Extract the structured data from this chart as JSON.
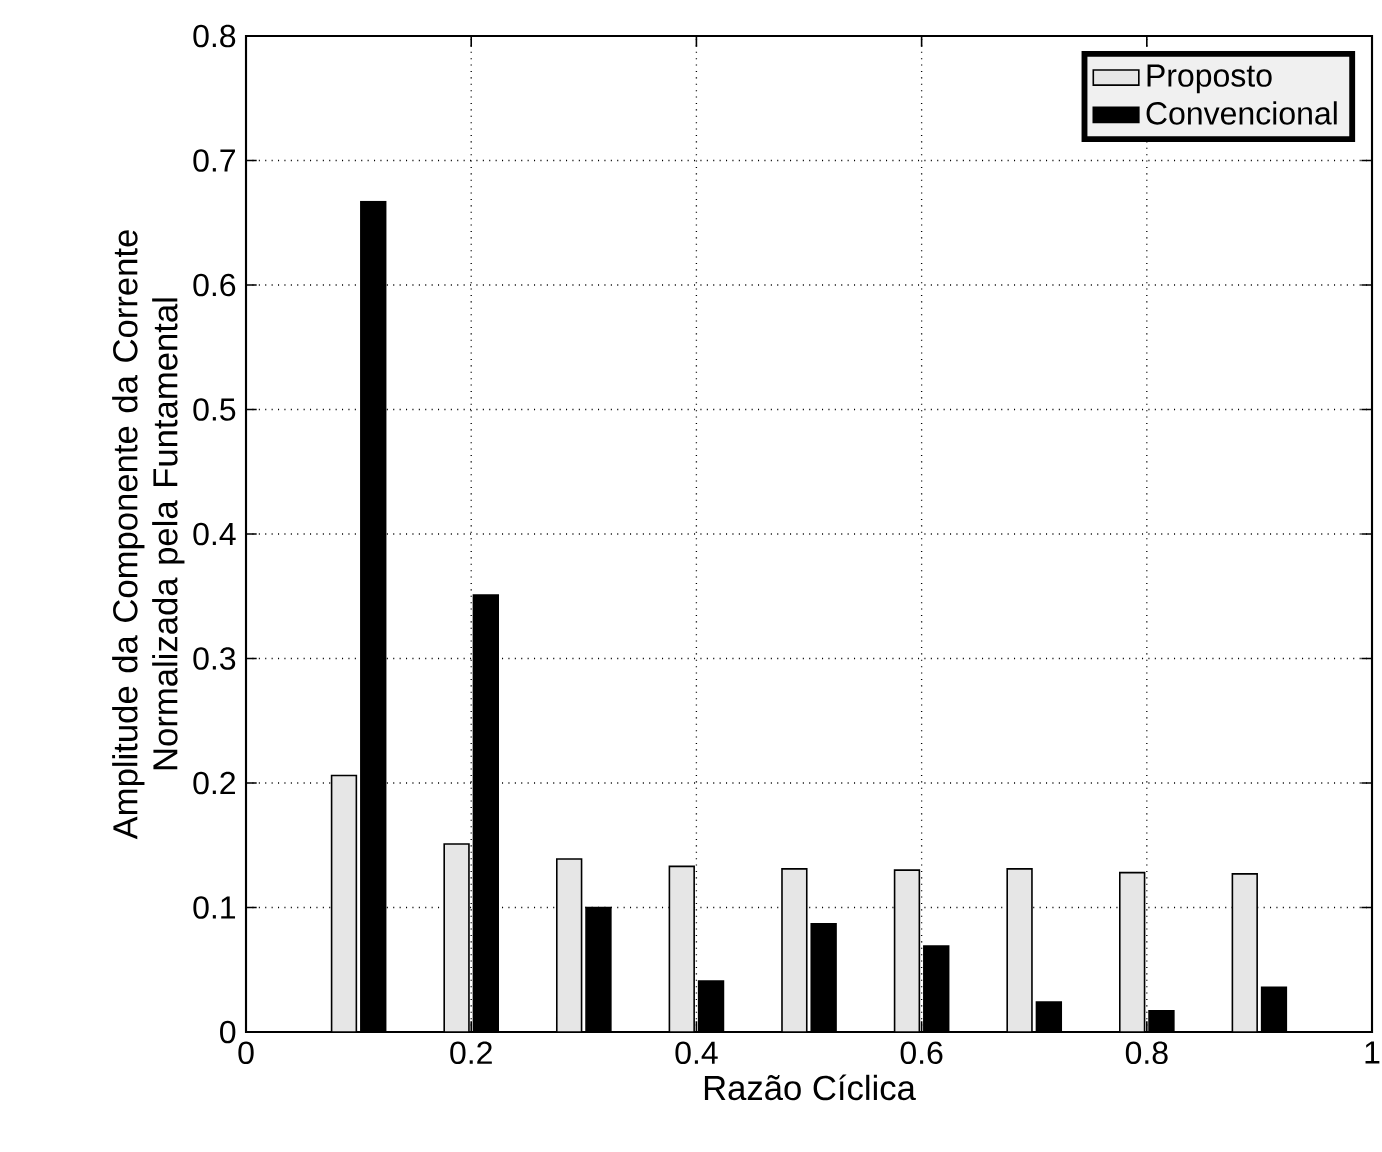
{
  "chart_data": {
    "type": "bar",
    "xlabel": "Razão Cíclica",
    "ylabel": "Amplitude da Componente da Corrente Normalizada pela Funtamental",
    "x": [
      0.1,
      0.2,
      0.3,
      0.4,
      0.5,
      0.6,
      0.7,
      0.8,
      0.9
    ],
    "series": [
      {
        "name": "Proposto",
        "color": "#e6e6e6",
        "values": [
          0.206,
          0.151,
          0.139,
          0.133,
          0.131,
          0.13,
          0.131,
          0.128,
          0.127
        ]
      },
      {
        "name": "Convencional",
        "color": "#000000",
        "values": [
          0.667,
          0.351,
          0.1,
          0.041,
          0.087,
          0.069,
          0.024,
          0.017,
          0.036
        ]
      }
    ],
    "xlim": [
      0,
      1
    ],
    "xticks": [
      0,
      0.2,
      0.4,
      0.6,
      0.8,
      1
    ],
    "ylim": [
      0,
      0.8
    ],
    "yticks": [
      0,
      0.1,
      0.2,
      0.3,
      0.4,
      0.5,
      0.6,
      0.7,
      0.8
    ],
    "grid": true,
    "legend": "top right"
  }
}
